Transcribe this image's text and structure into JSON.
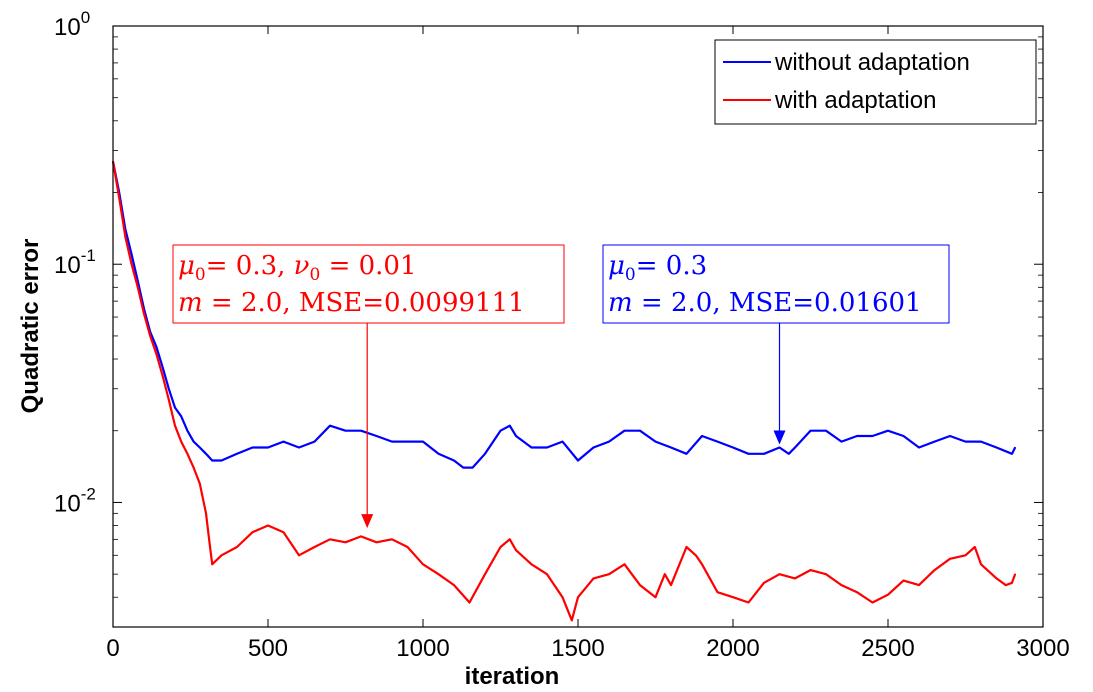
{
  "chart_data": {
    "type": "line",
    "xlabel": "iteration",
    "ylabel": "Quadratic error",
    "xlim": [
      0,
      3000
    ],
    "ylim": [
      0.003,
      1
    ],
    "yscale": "log",
    "xticks": [
      "0",
      "500",
      "1000",
      "1500",
      "2000",
      "2500",
      "3000"
    ],
    "yticks": [
      {
        "value": 1,
        "base": "10",
        "exp": "0"
      },
      {
        "value": 0.1,
        "base": "10",
        "exp": "-1"
      },
      {
        "value": 0.01,
        "base": "10",
        "exp": "-2"
      }
    ],
    "legend": {
      "position": "top-right",
      "entries": [
        {
          "label": "without adaptation",
          "color": "#0000ff"
        },
        {
          "label": "with adaptation",
          "color": "#ff0000"
        }
      ]
    },
    "series": [
      {
        "name": "without adaptation",
        "color": "#0000ff",
        "x": [
          0,
          20,
          40,
          60,
          80,
          100,
          120,
          140,
          160,
          180,
          200,
          220,
          240,
          260,
          280,
          300,
          320,
          350,
          400,
          450,
          500,
          550,
          600,
          650,
          700,
          750,
          800,
          850,
          900,
          950,
          1000,
          1050,
          1100,
          1130,
          1160,
          1200,
          1250,
          1280,
          1300,
          1350,
          1400,
          1450,
          1500,
          1550,
          1600,
          1650,
          1700,
          1750,
          1800,
          1850,
          1900,
          1950,
          2000,
          2050,
          2100,
          2150,
          2180,
          2200,
          2250,
          2300,
          2350,
          2400,
          2450,
          2500,
          2550,
          2600,
          2650,
          2700,
          2750,
          2800,
          2850,
          2900,
          2910
        ],
        "y": [
          0.27,
          0.2,
          0.14,
          0.11,
          0.085,
          0.065,
          0.052,
          0.045,
          0.037,
          0.03,
          0.025,
          0.023,
          0.02,
          0.018,
          0.017,
          0.016,
          0.015,
          0.015,
          0.016,
          0.017,
          0.017,
          0.018,
          0.017,
          0.018,
          0.021,
          0.02,
          0.02,
          0.019,
          0.018,
          0.018,
          0.018,
          0.016,
          0.015,
          0.014,
          0.014,
          0.016,
          0.02,
          0.021,
          0.019,
          0.017,
          0.017,
          0.018,
          0.015,
          0.017,
          0.018,
          0.02,
          0.02,
          0.018,
          0.017,
          0.016,
          0.019,
          0.018,
          0.017,
          0.016,
          0.016,
          0.017,
          0.016,
          0.017,
          0.02,
          0.02,
          0.018,
          0.019,
          0.019,
          0.02,
          0.019,
          0.017,
          0.018,
          0.019,
          0.018,
          0.018,
          0.017,
          0.016,
          0.017
        ]
      },
      {
        "name": "with adaptation",
        "color": "#ff0000",
        "x": [
          0,
          20,
          40,
          60,
          80,
          100,
          120,
          140,
          160,
          180,
          200,
          220,
          240,
          260,
          280,
          300,
          310,
          320,
          350,
          400,
          450,
          500,
          550,
          600,
          650,
          700,
          750,
          800,
          850,
          900,
          950,
          1000,
          1050,
          1100,
          1150,
          1200,
          1250,
          1280,
          1300,
          1350,
          1400,
          1450,
          1480,
          1500,
          1550,
          1600,
          1650,
          1700,
          1750,
          1780,
          1800,
          1850,
          1880,
          1900,
          1950,
          2000,
          2050,
          2100,
          2150,
          2200,
          2250,
          2300,
          2350,
          2400,
          2450,
          2500,
          2550,
          2600,
          2650,
          2700,
          2750,
          2780,
          2800,
          2850,
          2880,
          2900,
          2910
        ],
        "y": [
          0.27,
          0.19,
          0.13,
          0.1,
          0.08,
          0.062,
          0.05,
          0.042,
          0.034,
          0.027,
          0.021,
          0.018,
          0.016,
          0.014,
          0.012,
          0.009,
          0.007,
          0.0055,
          0.006,
          0.0065,
          0.0075,
          0.008,
          0.0075,
          0.006,
          0.0065,
          0.007,
          0.0068,
          0.0072,
          0.0068,
          0.007,
          0.0065,
          0.0055,
          0.005,
          0.0045,
          0.0038,
          0.005,
          0.0065,
          0.007,
          0.0063,
          0.0055,
          0.005,
          0.004,
          0.0032,
          0.004,
          0.0048,
          0.005,
          0.0055,
          0.0045,
          0.004,
          0.005,
          0.0045,
          0.0065,
          0.006,
          0.0055,
          0.0042,
          0.004,
          0.0038,
          0.0046,
          0.005,
          0.0048,
          0.0052,
          0.005,
          0.0045,
          0.0042,
          0.0038,
          0.0041,
          0.0047,
          0.0045,
          0.0052,
          0.0058,
          0.006,
          0.0065,
          0.0055,
          0.0048,
          0.0045,
          0.0046,
          0.005
        ]
      }
    ],
    "annotations": [
      {
        "color": "#ff0000",
        "line1": [
          "μ",
          "0",
          "= 0.3, ",
          "ν",
          "0",
          " = 0.01"
        ],
        "line2": [
          "m",
          " = 2.0, MSE=0.0099111"
        ],
        "arrow_to": {
          "x": 820,
          "y": 0.0078
        }
      },
      {
        "color": "#0000ff",
        "line1": [
          "μ",
          "0",
          "= 0.3"
        ],
        "line2": [
          "m",
          " = 2.0, MSE=0.01601"
        ],
        "arrow_to": {
          "x": 2150,
          "y": 0.0175
        }
      }
    ]
  }
}
